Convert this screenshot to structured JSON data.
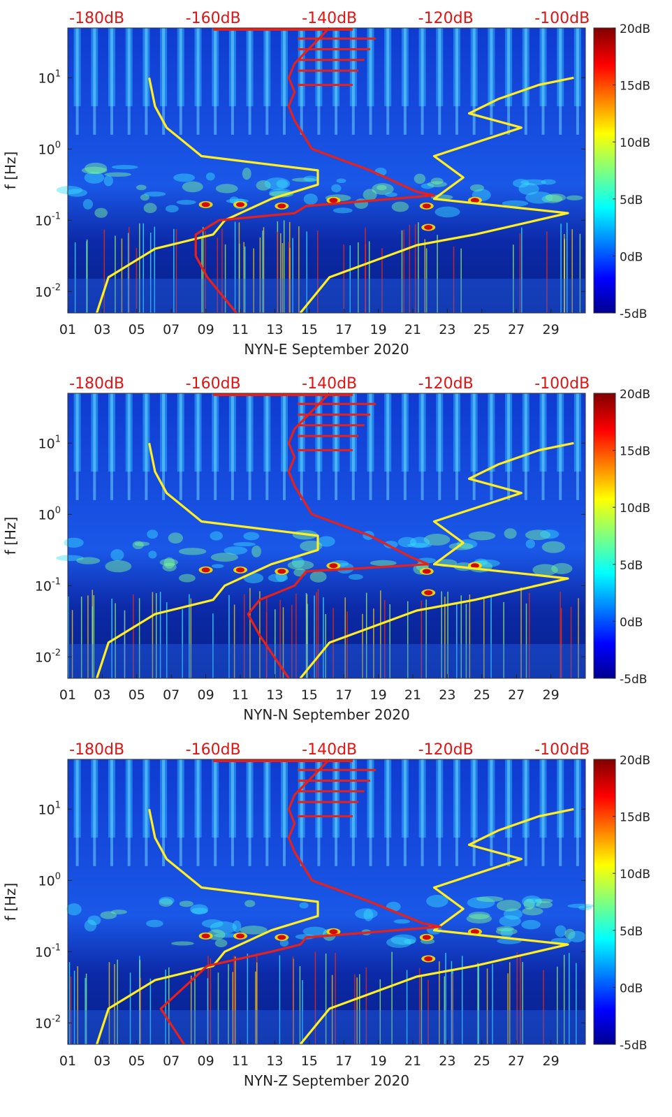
{
  "chart_data": [
    {
      "type": "heatmap",
      "component": "NYN-E",
      "xlabel": "NYN-E September 2020",
      "ylabel": "f [Hz]",
      "x_tick_labels": [
        "01",
        "03",
        "05",
        "07",
        "09",
        "11",
        "13",
        "15",
        "17",
        "19",
        "21",
        "23",
        "25",
        "27",
        "29"
      ],
      "xlim_days": [
        1,
        31
      ],
      "y_tick_labels": [
        "10^{-2}",
        "10^{-1}",
        "10^{0}",
        "10^{1}"
      ],
      "ylim_hz": [
        0.005,
        50
      ],
      "colorbar": {
        "ticks": [
          "20dB",
          "15dB",
          "10dB",
          "5dB",
          "0dB",
          "-5dB"
        ],
        "range_db": [
          -5,
          20
        ]
      },
      "psd_axis_labels": [
        "-180dB",
        "-160dB",
        "-140dB",
        "-120dB",
        "-100dB"
      ],
      "psd_xlim_db": [
        -185,
        -96
      ],
      "yellow_low_noise_model": {
        "db": [
          -180,
          -178,
          -170,
          -160,
          -159,
          -158,
          -150,
          -142,
          -142,
          -162,
          -168,
          -170,
          -171
        ],
        "log10f": [
          -2.3,
          -1.8,
          -1.4,
          -1.2,
          -1.1,
          -1.0,
          -0.7,
          -0.5,
          -0.3,
          -0.1,
          0.3,
          0.6,
          1.0
        ]
      },
      "yellow_high_noise_model": {
        "db": [
          -145,
          -140,
          -125,
          -115,
          -99,
          -122,
          -117,
          -122,
          -107,
          -116,
          -111,
          -104,
          -98
        ],
        "log10f": [
          -2.3,
          -1.8,
          -1.35,
          -1.2,
          -0.9,
          -0.7,
          -0.4,
          -0.1,
          0.3,
          0.5,
          0.7,
          0.9,
          1.0
        ]
      },
      "red_median_psd": {
        "db": [
          -156,
          -161,
          -163,
          -163,
          -159,
          -146,
          -144,
          -122,
          -125,
          -133,
          -143,
          -146,
          -147,
          -146,
          -147,
          -146,
          -143,
          -140
        ],
        "log10f": [
          -2.3,
          -1.8,
          -1.5,
          -1.2,
          -1.0,
          -0.9,
          -0.8,
          -0.65,
          -0.6,
          -0.3,
          0.0,
          0.4,
          0.6,
          0.8,
          1.0,
          1.2,
          1.45,
          1.7
        ]
      }
    },
    {
      "type": "heatmap",
      "component": "NYN-N",
      "xlabel": "NYN-N September 2020",
      "ylabel": "f [Hz]",
      "x_tick_labels": [
        "01",
        "03",
        "05",
        "07",
        "09",
        "11",
        "13",
        "15",
        "17",
        "19",
        "21",
        "23",
        "25",
        "27",
        "29"
      ],
      "xlim_days": [
        1,
        31
      ],
      "y_tick_labels": [
        "10^{-2}",
        "10^{-1}",
        "10^{0}",
        "10^{1}"
      ],
      "ylim_hz": [
        0.005,
        50
      ],
      "colorbar": {
        "ticks": [
          "20dB",
          "15dB",
          "10dB",
          "5dB",
          "0dB",
          "-5dB"
        ],
        "range_db": [
          -5,
          20
        ]
      },
      "psd_axis_labels": [
        "-180dB",
        "-160dB",
        "-140dB",
        "-120dB",
        "-100dB"
      ],
      "psd_xlim_db": [
        -185,
        -96
      ],
      "yellow_low_noise_model": {
        "db": [
          -180,
          -178,
          -170,
          -160,
          -159,
          -158,
          -150,
          -142,
          -142,
          -162,
          -168,
          -170,
          -171
        ],
        "log10f": [
          -2.3,
          -1.8,
          -1.4,
          -1.2,
          -1.1,
          -1.0,
          -0.7,
          -0.5,
          -0.3,
          -0.1,
          0.3,
          0.6,
          1.0
        ]
      },
      "yellow_high_noise_model": {
        "db": [
          -145,
          -140,
          -125,
          -115,
          -99,
          -122,
          -117,
          -122,
          -107,
          -116,
          -111,
          -104,
          -98
        ],
        "log10f": [
          -2.3,
          -1.8,
          -1.35,
          -1.2,
          -0.9,
          -0.7,
          -0.4,
          -0.1,
          0.3,
          0.5,
          0.7,
          0.9,
          1.0
        ]
      },
      "red_median_psd": {
        "db": [
          -147,
          -152,
          -154,
          -152,
          -146,
          -144,
          -123,
          -126,
          -133,
          -143,
          -146,
          -147,
          -146,
          -147,
          -146,
          -143,
          -140
        ],
        "log10f": [
          -2.3,
          -1.7,
          -1.4,
          -1.2,
          -1.0,
          -0.8,
          -0.7,
          -0.6,
          -0.3,
          0.0,
          0.4,
          0.6,
          0.8,
          1.0,
          1.2,
          1.45,
          1.7
        ]
      }
    },
    {
      "type": "heatmap",
      "component": "NYN-Z",
      "xlabel": "NYN-Z September 2020",
      "ylabel": "f [Hz]",
      "x_tick_labels": [
        "01",
        "03",
        "05",
        "07",
        "09",
        "11",
        "13",
        "15",
        "17",
        "19",
        "21",
        "23",
        "25",
        "27",
        "29"
      ],
      "xlim_days": [
        1,
        31
      ],
      "y_tick_labels": [
        "10^{-2}",
        "10^{-1}",
        "10^{0}",
        "10^{1}"
      ],
      "ylim_hz": [
        0.005,
        50
      ],
      "colorbar": {
        "ticks": [
          "20dB",
          "15dB",
          "10dB",
          "5dB",
          "0dB",
          "-5dB"
        ],
        "range_db": [
          -5,
          20
        ]
      },
      "psd_axis_labels": [
        "-180dB",
        "-160dB",
        "-140dB",
        "-120dB",
        "-100dB"
      ],
      "psd_xlim_db": [
        -185,
        -96
      ],
      "yellow_low_noise_model": {
        "db": [
          -180,
          -178,
          -170,
          -160,
          -159,
          -158,
          -150,
          -142,
          -142,
          -162,
          -168,
          -170,
          -171
        ],
        "log10f": [
          -2.3,
          -1.8,
          -1.4,
          -1.2,
          -1.1,
          -1.0,
          -0.7,
          -0.5,
          -0.3,
          -0.1,
          0.3,
          0.6,
          1.0
        ]
      },
      "yellow_high_noise_model": {
        "db": [
          -145,
          -140,
          -125,
          -115,
          -99,
          -122,
          -117,
          -122,
          -107,
          -116,
          -111,
          -104,
          -98
        ],
        "log10f": [
          -2.3,
          -1.8,
          -1.35,
          -1.2,
          -0.9,
          -0.7,
          -0.4,
          -0.1,
          0.3,
          0.5,
          0.7,
          0.9,
          1.0
        ]
      },
      "red_median_psd": {
        "db": [
          -165,
          -169,
          -165,
          -161,
          -150,
          -145,
          -144,
          -121,
          -124,
          -133,
          -143,
          -146,
          -147,
          -146,
          -147,
          -146,
          -143,
          -140
        ],
        "log10f": [
          -2.3,
          -1.8,
          -1.5,
          -1.2,
          -1.0,
          -0.9,
          -0.8,
          -0.65,
          -0.6,
          -0.3,
          0.0,
          0.4,
          0.6,
          0.8,
          1.0,
          1.2,
          1.45,
          1.7
        ]
      }
    }
  ],
  "colors": {
    "yellow_line": "#ffee22",
    "red_line": "#e8201a",
    "psd_label": "#e01414",
    "background_blue": "#0a2fb0"
  }
}
